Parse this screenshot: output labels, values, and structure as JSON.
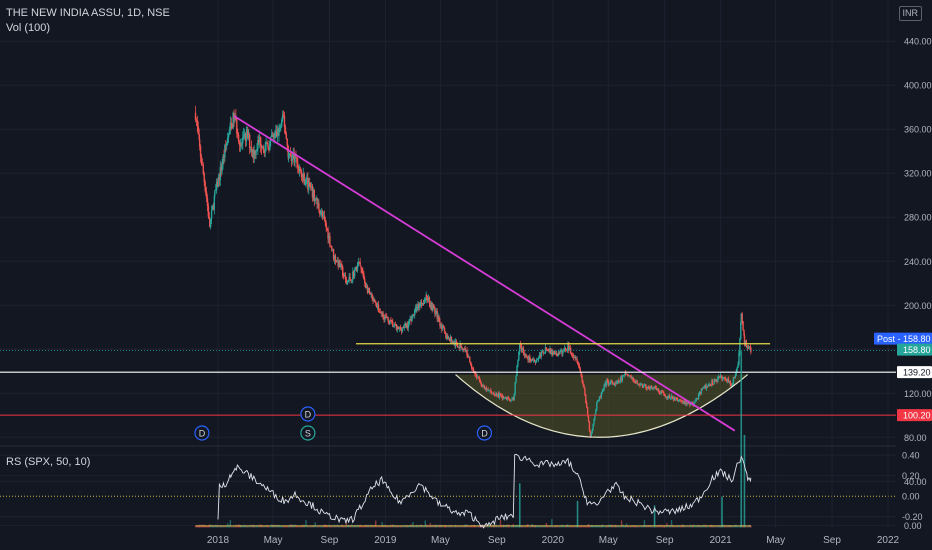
{
  "header": {
    "symbol": "THE NEW INDIA ASSU, 1D, NSE",
    "volume": "Vol (100)",
    "currency": "INR"
  },
  "chart_data": {
    "type": "candlestick",
    "y_axis": {
      "ticks": [
        440,
        400,
        360,
        320,
        280,
        240,
        200,
        160,
        120,
        80
      ],
      "range": [
        73,
        452
      ]
    },
    "x_axis": {
      "ticks": [
        "2018",
        "May",
        "Sep",
        "2019",
        "May",
        "Sep",
        "2020",
        "May",
        "Sep",
        "2021",
        "May",
        "Sep",
        "2022"
      ]
    },
    "price_series": [
      [
        "2017-11-13",
        375
      ],
      [
        "2017-11-22",
        342
      ],
      [
        "2017-12-05",
        305
      ],
      [
        "2017-12-14",
        272
      ],
      [
        "2017-12-25",
        300
      ],
      [
        "2018-01-08",
        325
      ],
      [
        "2018-01-22",
        352
      ],
      [
        "2018-02-05",
        372
      ],
      [
        "2018-02-20",
        345
      ],
      [
        "2018-03-05",
        355
      ],
      [
        "2018-03-19",
        338
      ],
      [
        "2018-04-02",
        350
      ],
      [
        "2018-04-16",
        342
      ],
      [
        "2018-05-01",
        352
      ],
      [
        "2018-05-14",
        358
      ],
      [
        "2018-05-24",
        370
      ],
      [
        "2018-06-04",
        336
      ],
      [
        "2018-06-18",
        335
      ],
      [
        "2018-07-02",
        318
      ],
      [
        "2018-07-16",
        310
      ],
      [
        "2018-07-30",
        298
      ],
      [
        "2018-08-13",
        285
      ],
      [
        "2018-08-27",
        268
      ],
      [
        "2018-09-10",
        245
      ],
      [
        "2018-09-24",
        236
      ],
      [
        "2018-10-08",
        220
      ],
      [
        "2018-10-22",
        228
      ],
      [
        "2018-11-05",
        238
      ],
      [
        "2018-11-19",
        218
      ],
      [
        "2018-12-03",
        205
      ],
      [
        "2018-12-17",
        196
      ],
      [
        "2019-01-07",
        186
      ],
      [
        "2019-01-28",
        178
      ],
      [
        "2019-02-18",
        182
      ],
      [
        "2019-03-11",
        198
      ],
      [
        "2019-04-01",
        208
      ],
      [
        "2019-04-22",
        192
      ],
      [
        "2019-05-13",
        172
      ],
      [
        "2019-06-03",
        165
      ],
      [
        "2019-06-24",
        160
      ],
      [
        "2019-07-15",
        138
      ],
      [
        "2019-08-05",
        124
      ],
      [
        "2019-08-26",
        120
      ],
      [
        "2019-09-16",
        116
      ],
      [
        "2019-10-07",
        114
      ],
      [
        "2019-10-21",
        165
      ],
      [
        "2019-11-04",
        152
      ],
      [
        "2019-11-25",
        150
      ],
      [
        "2019-12-16",
        160
      ],
      [
        "2020-01-13",
        155
      ],
      [
        "2020-02-03",
        162
      ],
      [
        "2020-02-24",
        150
      ],
      [
        "2020-03-09",
        125
      ],
      [
        "2020-03-23",
        80
      ],
      [
        "2020-04-06",
        110
      ],
      [
        "2020-04-27",
        130
      ],
      [
        "2020-05-18",
        128
      ],
      [
        "2020-06-08",
        138
      ],
      [
        "2020-06-29",
        130
      ],
      [
        "2020-07-20",
        126
      ],
      [
        "2020-08-10",
        124
      ],
      [
        "2020-08-31",
        118
      ],
      [
        "2020-09-21",
        115
      ],
      [
        "2020-10-12",
        112
      ],
      [
        "2020-11-02",
        110
      ],
      [
        "2020-11-23",
        124
      ],
      [
        "2020-12-14",
        130
      ],
      [
        "2021-01-04",
        135
      ],
      [
        "2021-01-25",
        128
      ],
      [
        "2021-02-08",
        145
      ],
      [
        "2021-02-15",
        190
      ],
      [
        "2021-02-22",
        168
      ],
      [
        "2021-03-01",
        162
      ],
      [
        "2021-03-08",
        158.8
      ]
    ],
    "volume_bursts": [
      [
        "2019-10-21",
        1.0
      ],
      [
        "2020-02-24",
        0.6
      ],
      [
        "2020-08-10",
        0.5
      ],
      [
        "2021-01-04",
        0.7
      ],
      [
        "2021-02-15",
        4.0
      ],
      [
        "2021-02-22",
        2.1
      ]
    ],
    "drawings": {
      "trendline": {
        "from": [
          "2018-02-05",
          372
        ],
        "to": [
          "2021-02-01",
          86
        ],
        "color": "#d63cd6"
      },
      "resistance": {
        "from": "2018-10-29",
        "to": "2021-04-19",
        "value": 165,
        "color": "#e8d84a"
      },
      "horizontal_white": {
        "value": 139.2,
        "color": "#ffffff"
      },
      "horizontal_red": {
        "value": 100.2,
        "color": "#f23645"
      },
      "cup": {
        "from": [
          "2019-06-03",
          137
        ],
        "bottom": [
          "2020-04-06",
          80
        ],
        "to": [
          "2021-03-01",
          137
        ],
        "color": "#e6e6c8"
      }
    },
    "price_labels": [
      {
        "name": "Post",
        "value": "158.80",
        "color": "#2962ff"
      },
      {
        "name": "",
        "value": "158.80",
        "color": "#26a69a"
      },
      {
        "name": "",
        "value": "139.20",
        "color": "#ffffff"
      },
      {
        "name": "",
        "value": "100.20",
        "color": "#f23645"
      }
    ],
    "events": [
      {
        "label": "D",
        "date": "2017-11-27",
        "row": 0,
        "color": "#2962ff"
      },
      {
        "label": "D",
        "date": "2018-07-16",
        "row": 1,
        "color": "#2962ff"
      },
      {
        "label": "S",
        "date": "2018-07-16",
        "row": 0,
        "color": "#26a69a"
      },
      {
        "label": "D",
        "date": "2019-08-05",
        "row": 0,
        "color": "#2962ff"
      }
    ],
    "volume_axis": {
      "ticks": [
        40,
        0
      ],
      "label_ticks": [
        "40.00",
        "0.00"
      ]
    },
    "rs_indicator": {
      "title": "RS (SPX, 50, 10)",
      "ticks": [
        0.4,
        0.2,
        0.0,
        -0.2
      ],
      "tick_labels": [
        "0.40",
        "0.20",
        "0.00",
        "-0.20"
      ],
      "range": [
        -0.31,
        0.46
      ],
      "series": [
        [
          "2018-01-01",
          -0.25
        ],
        [
          "2018-01-15",
          0.1
        ],
        [
          "2018-01-29",
          0.22
        ],
        [
          "2018-02-12",
          0.28
        ],
        [
          "2018-03-05",
          0.22
        ],
        [
          "2018-03-26",
          0.15
        ],
        [
          "2018-04-16",
          0.08
        ],
        [
          "2018-05-07",
          0.0
        ],
        [
          "2018-05-28",
          -0.05
        ],
        [
          "2018-06-18",
          0.02
        ],
        [
          "2018-07-09",
          -0.05
        ],
        [
          "2018-07-30",
          -0.1
        ],
        [
          "2018-08-20",
          -0.18
        ],
        [
          "2018-09-10",
          -0.2
        ],
        [
          "2018-10-01",
          -0.25
        ],
        [
          "2018-10-22",
          -0.22
        ],
        [
          "2018-11-12",
          -0.08
        ],
        [
          "2018-12-03",
          0.08
        ],
        [
          "2018-12-24",
          0.16
        ],
        [
          "2019-01-14",
          0.02
        ],
        [
          "2019-02-04",
          -0.06
        ],
        [
          "2019-02-25",
          0.04
        ],
        [
          "2019-03-18",
          0.12
        ],
        [
          "2019-04-08",
          0.02
        ],
        [
          "2019-04-29",
          -0.08
        ],
        [
          "2019-05-20",
          -0.12
        ],
        [
          "2019-06-10",
          -0.18
        ],
        [
          "2019-07-01",
          -0.16
        ],
        [
          "2019-07-22",
          -0.25
        ],
        [
          "2019-08-12",
          -0.3
        ],
        [
          "2019-09-02",
          -0.22
        ],
        [
          "2019-09-23",
          -0.2
        ],
        [
          "2019-10-07",
          -0.18
        ],
        [
          "2019-10-21",
          0.38
        ],
        [
          "2019-11-11",
          0.36
        ],
        [
          "2019-12-02",
          0.3
        ],
        [
          "2019-12-23",
          0.32
        ],
        [
          "2020-01-13",
          0.3
        ],
        [
          "2020-02-03",
          0.34
        ],
        [
          "2020-02-24",
          0.2
        ],
        [
          "2020-03-16",
          -0.05
        ],
        [
          "2020-04-06",
          -0.1
        ],
        [
          "2020-04-27",
          0.05
        ],
        [
          "2020-05-18",
          0.1
        ],
        [
          "2020-06-08",
          -0.02
        ],
        [
          "2020-06-29",
          -0.05
        ],
        [
          "2020-07-20",
          -0.1
        ],
        [
          "2020-08-10",
          -0.15
        ],
        [
          "2020-08-31",
          -0.15
        ],
        [
          "2020-09-21",
          -0.15
        ],
        [
          "2020-10-12",
          -0.12
        ],
        [
          "2020-11-02",
          -0.08
        ],
        [
          "2020-11-23",
          0.02
        ],
        [
          "2020-12-14",
          0.18
        ],
        [
          "2021-01-04",
          0.24
        ],
        [
          "2021-01-25",
          0.15
        ],
        [
          "2021-02-15",
          0.4
        ],
        [
          "2021-03-01",
          0.16
        ],
        [
          "2021-03-08",
          0.18
        ]
      ]
    }
  }
}
